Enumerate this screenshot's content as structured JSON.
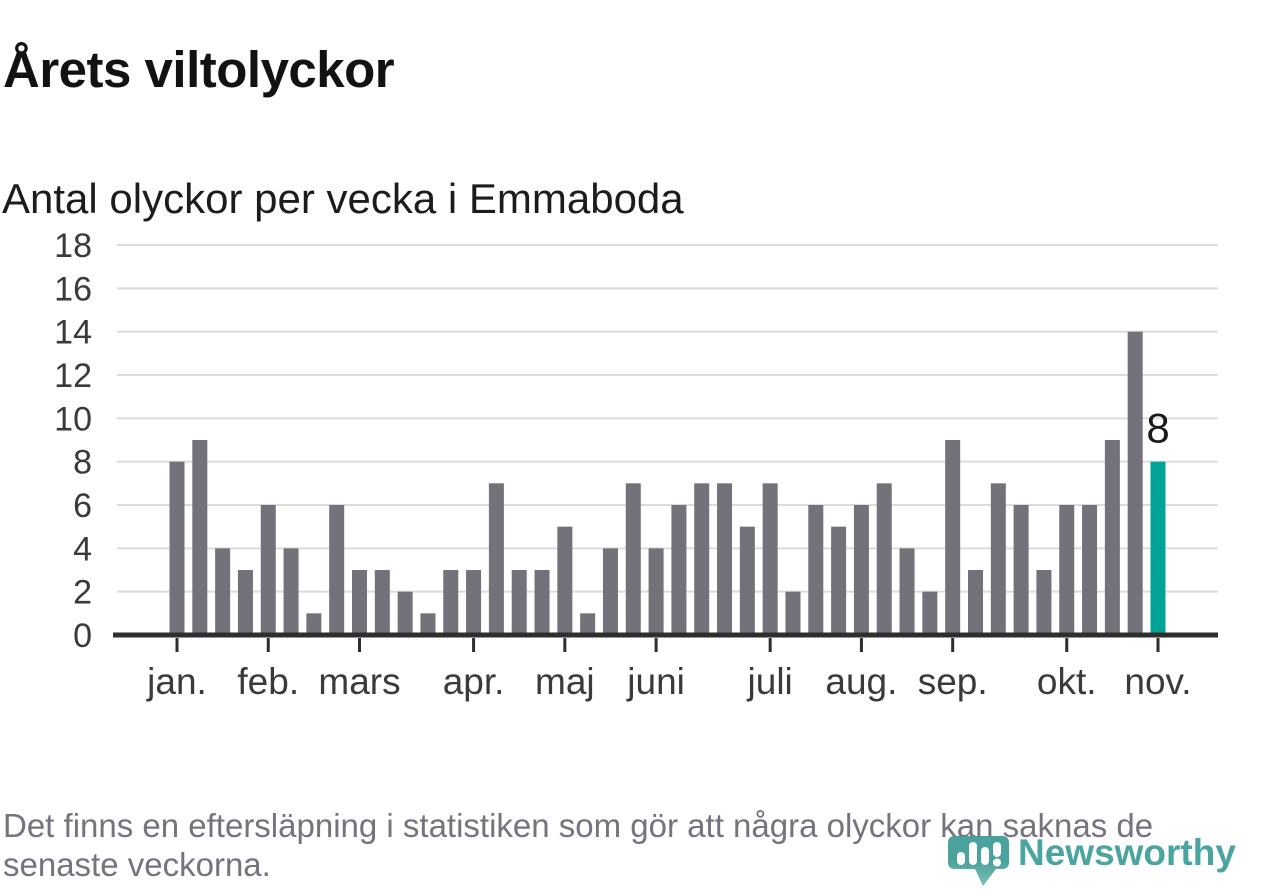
{
  "header": {
    "title": "Årets viltolyckor",
    "subtitle": "Antal olyckor per vecka i Emmaboda"
  },
  "chart_data": {
    "type": "bar",
    "title": "Årets viltolyckor",
    "subtitle": "Antal olyckor per vecka i Emmaboda",
    "unit": "olyckor per vecka",
    "values": [
      8,
      9,
      4,
      3,
      6,
      4,
      1,
      6,
      3,
      3,
      2,
      1,
      3,
      3,
      7,
      3,
      3,
      5,
      1,
      4,
      7,
      4,
      6,
      7,
      7,
      5,
      7,
      2,
      6,
      5,
      6,
      7,
      4,
      2,
      9,
      3,
      7,
      6,
      3,
      6,
      6,
      9,
      14,
      8
    ],
    "highlight_index": 43,
    "highlight_label": "8",
    "month_ticks": [
      {
        "label": "jan.",
        "bar_index": 0
      },
      {
        "label": "feb.",
        "bar_index": 4
      },
      {
        "label": "mars",
        "bar_index": 8
      },
      {
        "label": "apr.",
        "bar_index": 13
      },
      {
        "label": "maj",
        "bar_index": 17
      },
      {
        "label": "juni",
        "bar_index": 21
      },
      {
        "label": "juli",
        "bar_index": 26
      },
      {
        "label": "aug.",
        "bar_index": 30
      },
      {
        "label": "sep.",
        "bar_index": 34
      },
      {
        "label": "okt.",
        "bar_index": 39
      },
      {
        "label": "nov.",
        "bar_index": 43
      }
    ],
    "y_ticks": [
      0,
      2,
      4,
      6,
      8,
      10,
      12,
      14,
      16,
      18
    ],
    "ylim": [
      0,
      18
    ],
    "xlabel": "",
    "ylabel": "",
    "grid": "horizontal",
    "legend": "none",
    "colors": {
      "bar": "#737179",
      "highlight": "#00a497",
      "grid": "#dcdcdc",
      "axis": "#2e2e2e",
      "tick_label": "#3a3a3a",
      "value_label": "#1a1a1a"
    }
  },
  "footer": {
    "line1": "Det finns en eftersläpning i statistiken som gör att några olyckor kan saknas de",
    "line2": "senaste veckorna."
  },
  "logo": {
    "text": "Newsworthy",
    "color": "#3d9e98",
    "pin_color": "#3e9c95",
    "pin_color_light": "#72bab0"
  }
}
